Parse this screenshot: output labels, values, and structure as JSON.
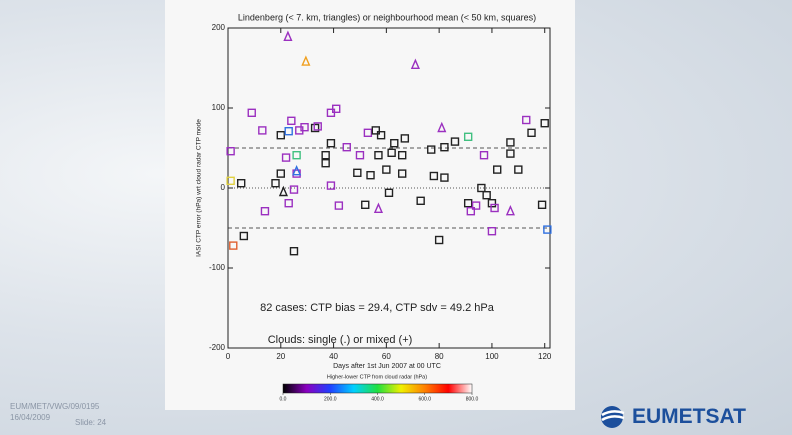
{
  "chart_data": {
    "type": "scatter",
    "title": "Lindenberg (< 7. km, triangles) or neighbourhood mean (< 50 km, squares)",
    "x_label": "Days after 1st Jun 2007 at 00 UTC",
    "y_label": "IASI CTP error (hPa) wrt cloud radar CTP mode",
    "annotations": [
      "82 cases: CTP bias = 29.4, CTP sdv = 49.2 hPa",
      "Clouds: single (.) or mixed (+)"
    ],
    "xlim": [
      0,
      122
    ],
    "ylim": [
      -200,
      200
    ],
    "xticks": [
      0,
      20,
      40,
      60,
      80,
      100,
      120
    ],
    "yticks": [
      -200,
      -100,
      0,
      100,
      200
    ],
    "dashed_lines": [
      50,
      -50
    ],
    "dotted_lines": [
      0
    ],
    "x": [
      9,
      24,
      39,
      41,
      13,
      20,
      23,
      27,
      29,
      33,
      34,
      53,
      56,
      58,
      63,
      67,
      113,
      120,
      115,
      107,
      91,
      1,
      22,
      26,
      39,
      37,
      45,
      37,
      50,
      57,
      62,
      66,
      77,
      82,
      86,
      97,
      107,
      20,
      26,
      49,
      54,
      60,
      66,
      78,
      82,
      102,
      110,
      5,
      39,
      25,
      14,
      23,
      42,
      52,
      61,
      73,
      91,
      92,
      94,
      100,
      101,
      119,
      6,
      2,
      25,
      80,
      100,
      121,
      1,
      96,
      98,
      18,
      22.7,
      29.5,
      71,
      81,
      21,
      57,
      107,
      26
    ],
    "values": [
      94,
      84,
      94,
      99,
      72,
      66,
      71,
      72,
      76,
      75,
      77,
      69,
      72,
      66,
      56,
      62,
      85,
      81,
      69,
      57,
      64,
      46,
      38,
      41,
      56,
      41,
      51,
      31,
      41,
      41,
      44,
      41,
      48,
      51,
      58,
      41,
      43,
      18,
      18,
      19,
      16,
      23,
      18,
      15,
      13,
      23,
      23,
      6,
      3,
      -2,
      -29,
      -19,
      -22,
      -21,
      -6,
      -16,
      -19,
      -29,
      -22,
      -19,
      -25,
      -21,
      -60,
      -72,
      -79,
      -65,
      -54,
      -52,
      9,
      0,
      -9,
      6,
      189,
      158,
      154,
      75,
      -5,
      -26,
      -29,
      21
    ],
    "markers": [
      "s",
      "s",
      "s",
      "s",
      "s",
      "s",
      "s",
      "s",
      "s",
      "s",
      "s",
      "s",
      "s",
      "s",
      "s",
      "s",
      "s",
      "s",
      "s",
      "s",
      "s",
      "s",
      "s",
      "s",
      "s",
      "s",
      "s",
      "s",
      "s",
      "s",
      "s",
      "s",
      "s",
      "s",
      "s",
      "s",
      "s",
      "s",
      "s",
      "s",
      "s",
      "s",
      "s",
      "s",
      "s",
      "s",
      "s",
      "s",
      "s",
      "s",
      "s",
      "s",
      "s",
      "s",
      "s",
      "s",
      "s",
      "s",
      "s",
      "s",
      "s",
      "s",
      "s",
      "s",
      "s",
      "s",
      "s",
      "s",
      "s",
      "s",
      "s",
      "s",
      "t",
      "t",
      "t",
      "t",
      "t",
      "t",
      "t",
      "t"
    ],
    "point_colors": [
      "#9b30c0",
      "#9b30c0",
      "#9b30c0",
      "#9b30c0",
      "#9b30c0",
      "#222222",
      "#3070e0",
      "#9b30c0",
      "#9b30c0",
      "#222222",
      "#9b30c0",
      "#9b30c0",
      "#222222",
      "#222222",
      "#222222",
      "#222222",
      "#9b30c0",
      "#222222",
      "#222222",
      "#222222",
      "#40c080",
      "#9b30c0",
      "#9b30c0",
      "#40c080",
      "#222222",
      "#222222",
      "#9b30c0",
      "#222222",
      "#9b30c0",
      "#222222",
      "#222222",
      "#222222",
      "#222222",
      "#222222",
      "#222222",
      "#9b30c0",
      "#222222",
      "#222222",
      "#9b30c0",
      "#222222",
      "#222222",
      "#222222",
      "#222222",
      "#222222",
      "#222222",
      "#222222",
      "#222222",
      "#222222",
      "#9b30c0",
      "#9b30c0",
      "#9b30c0",
      "#9b30c0",
      "#9b30c0",
      "#222222",
      "#222222",
      "#222222",
      "#222222",
      "#9b30c0",
      "#9b30c0",
      "#222222",
      "#9b30c0",
      "#222222",
      "#222222",
      "#e06030",
      "#222222",
      "#222222",
      "#9b30c0",
      "#3070e0",
      "#e0d040",
      "#222222",
      "#222222",
      "#222222",
      "#9b30c0",
      "#f0a020",
      "#9b30c0",
      "#9b30c0",
      "#222222",
      "#9b30c0",
      "#9b30c0",
      "#3070e0"
    ],
    "colorbar": {
      "title": "Higher-lower CTP from cloud radar (hPa)",
      "clim": [
        0,
        800
      ],
      "ticks": [
        {
          "value": 0,
          "label": "0.0"
        },
        {
          "value": 200,
          "label": "200.0"
        },
        {
          "value": 400,
          "label": "400.0"
        },
        {
          "value": 600,
          "label": "600.0"
        },
        {
          "value": 800,
          "label": "800.0"
        }
      ],
      "colors": [
        "#000000",
        "#8a00c0",
        "#2040ff",
        "#00d0ff",
        "#20e040",
        "#f0f000",
        "#ff8000",
        "#ff0000",
        "#ffffff"
      ]
    }
  },
  "footer": {
    "doc_id": "EUM/MET/VWG/09/0195",
    "date": "16/04/2009",
    "slide": "Slide: 24",
    "logo": "EUMETSAT"
  }
}
